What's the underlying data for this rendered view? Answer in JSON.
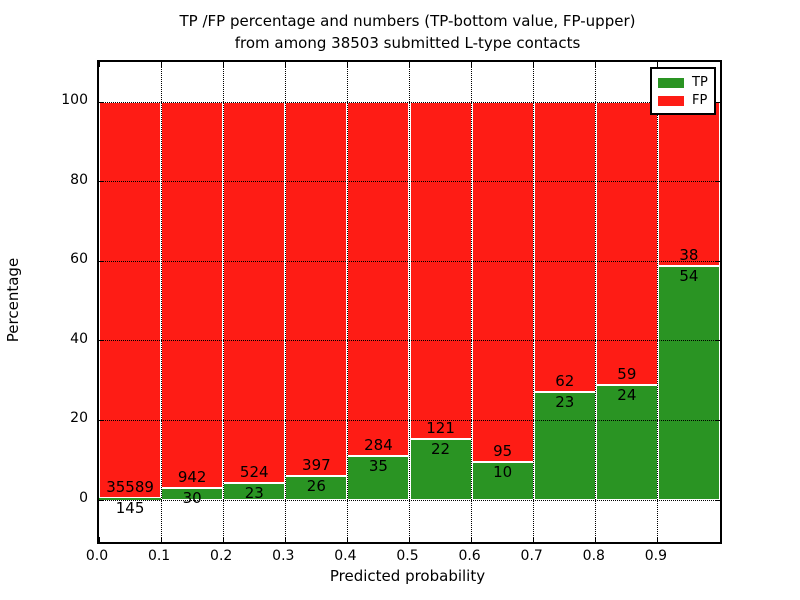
{
  "chart_data": {
    "type": "bar",
    "stacked": true,
    "title_line1": "TP /FP percentage and numbers (TP-bottom value, FP-upper)",
    "title_line2": "from among 38503 submitted L-type contacts",
    "xlabel": "Predicted probability",
    "ylabel": "Percentage",
    "total_submitted": 38503,
    "xlim": [
      0.0,
      1.0
    ],
    "ylim": [
      -10.55,
      110.05
    ],
    "grid": "dotted",
    "legend_position": "upper right",
    "colors": {
      "tp": "#2a9423",
      "fp": "#fe1c15",
      "bar_edge": "#ffffff",
      "grid": "#000000"
    },
    "legend": [
      {
        "label": "TP"
      },
      {
        "label": "FP"
      }
    ],
    "xticks": [
      {
        "v": 0.0,
        "label": "0.0"
      },
      {
        "v": 0.1,
        "label": "0.1"
      },
      {
        "v": 0.2,
        "label": "0.2"
      },
      {
        "v": 0.3,
        "label": "0.3"
      },
      {
        "v": 0.4,
        "label": "0.4"
      },
      {
        "v": 0.5,
        "label": "0.5"
      },
      {
        "v": 0.6,
        "label": "0.6"
      },
      {
        "v": 0.7,
        "label": "0.7"
      },
      {
        "v": 0.8,
        "label": "0.8"
      },
      {
        "v": 0.9,
        "label": "0.9"
      }
    ],
    "yticks": [
      {
        "v": 0,
        "label": "0"
      },
      {
        "v": 20,
        "label": "20"
      },
      {
        "v": 40,
        "label": "40"
      },
      {
        "v": 60,
        "label": "60"
      },
      {
        "v": 80,
        "label": "80"
      },
      {
        "v": 100,
        "label": "100"
      }
    ],
    "bins": [
      {
        "x0": 0.0,
        "x1": 0.1,
        "tp": 145,
        "fp": 35589
      },
      {
        "x0": 0.1,
        "x1": 0.2,
        "tp": 30,
        "fp": 942
      },
      {
        "x0": 0.2,
        "x1": 0.3,
        "tp": 23,
        "fp": 524
      },
      {
        "x0": 0.3,
        "x1": 0.4,
        "tp": 26,
        "fp": 397
      },
      {
        "x0": 0.4,
        "x1": 0.5,
        "tp": 35,
        "fp": 284
      },
      {
        "x0": 0.5,
        "x1": 0.6,
        "tp": 22,
        "fp": 121
      },
      {
        "x0": 0.6,
        "x1": 0.7,
        "tp": 10,
        "fp": 95
      },
      {
        "x0": 0.7,
        "x1": 0.8,
        "tp": 23,
        "fp": 62
      },
      {
        "x0": 0.8,
        "x1": 0.9,
        "tp": 24,
        "fp": 59
      },
      {
        "x0": 0.9,
        "x1": 1.0,
        "tp": 54,
        "fp": 38
      }
    ]
  }
}
